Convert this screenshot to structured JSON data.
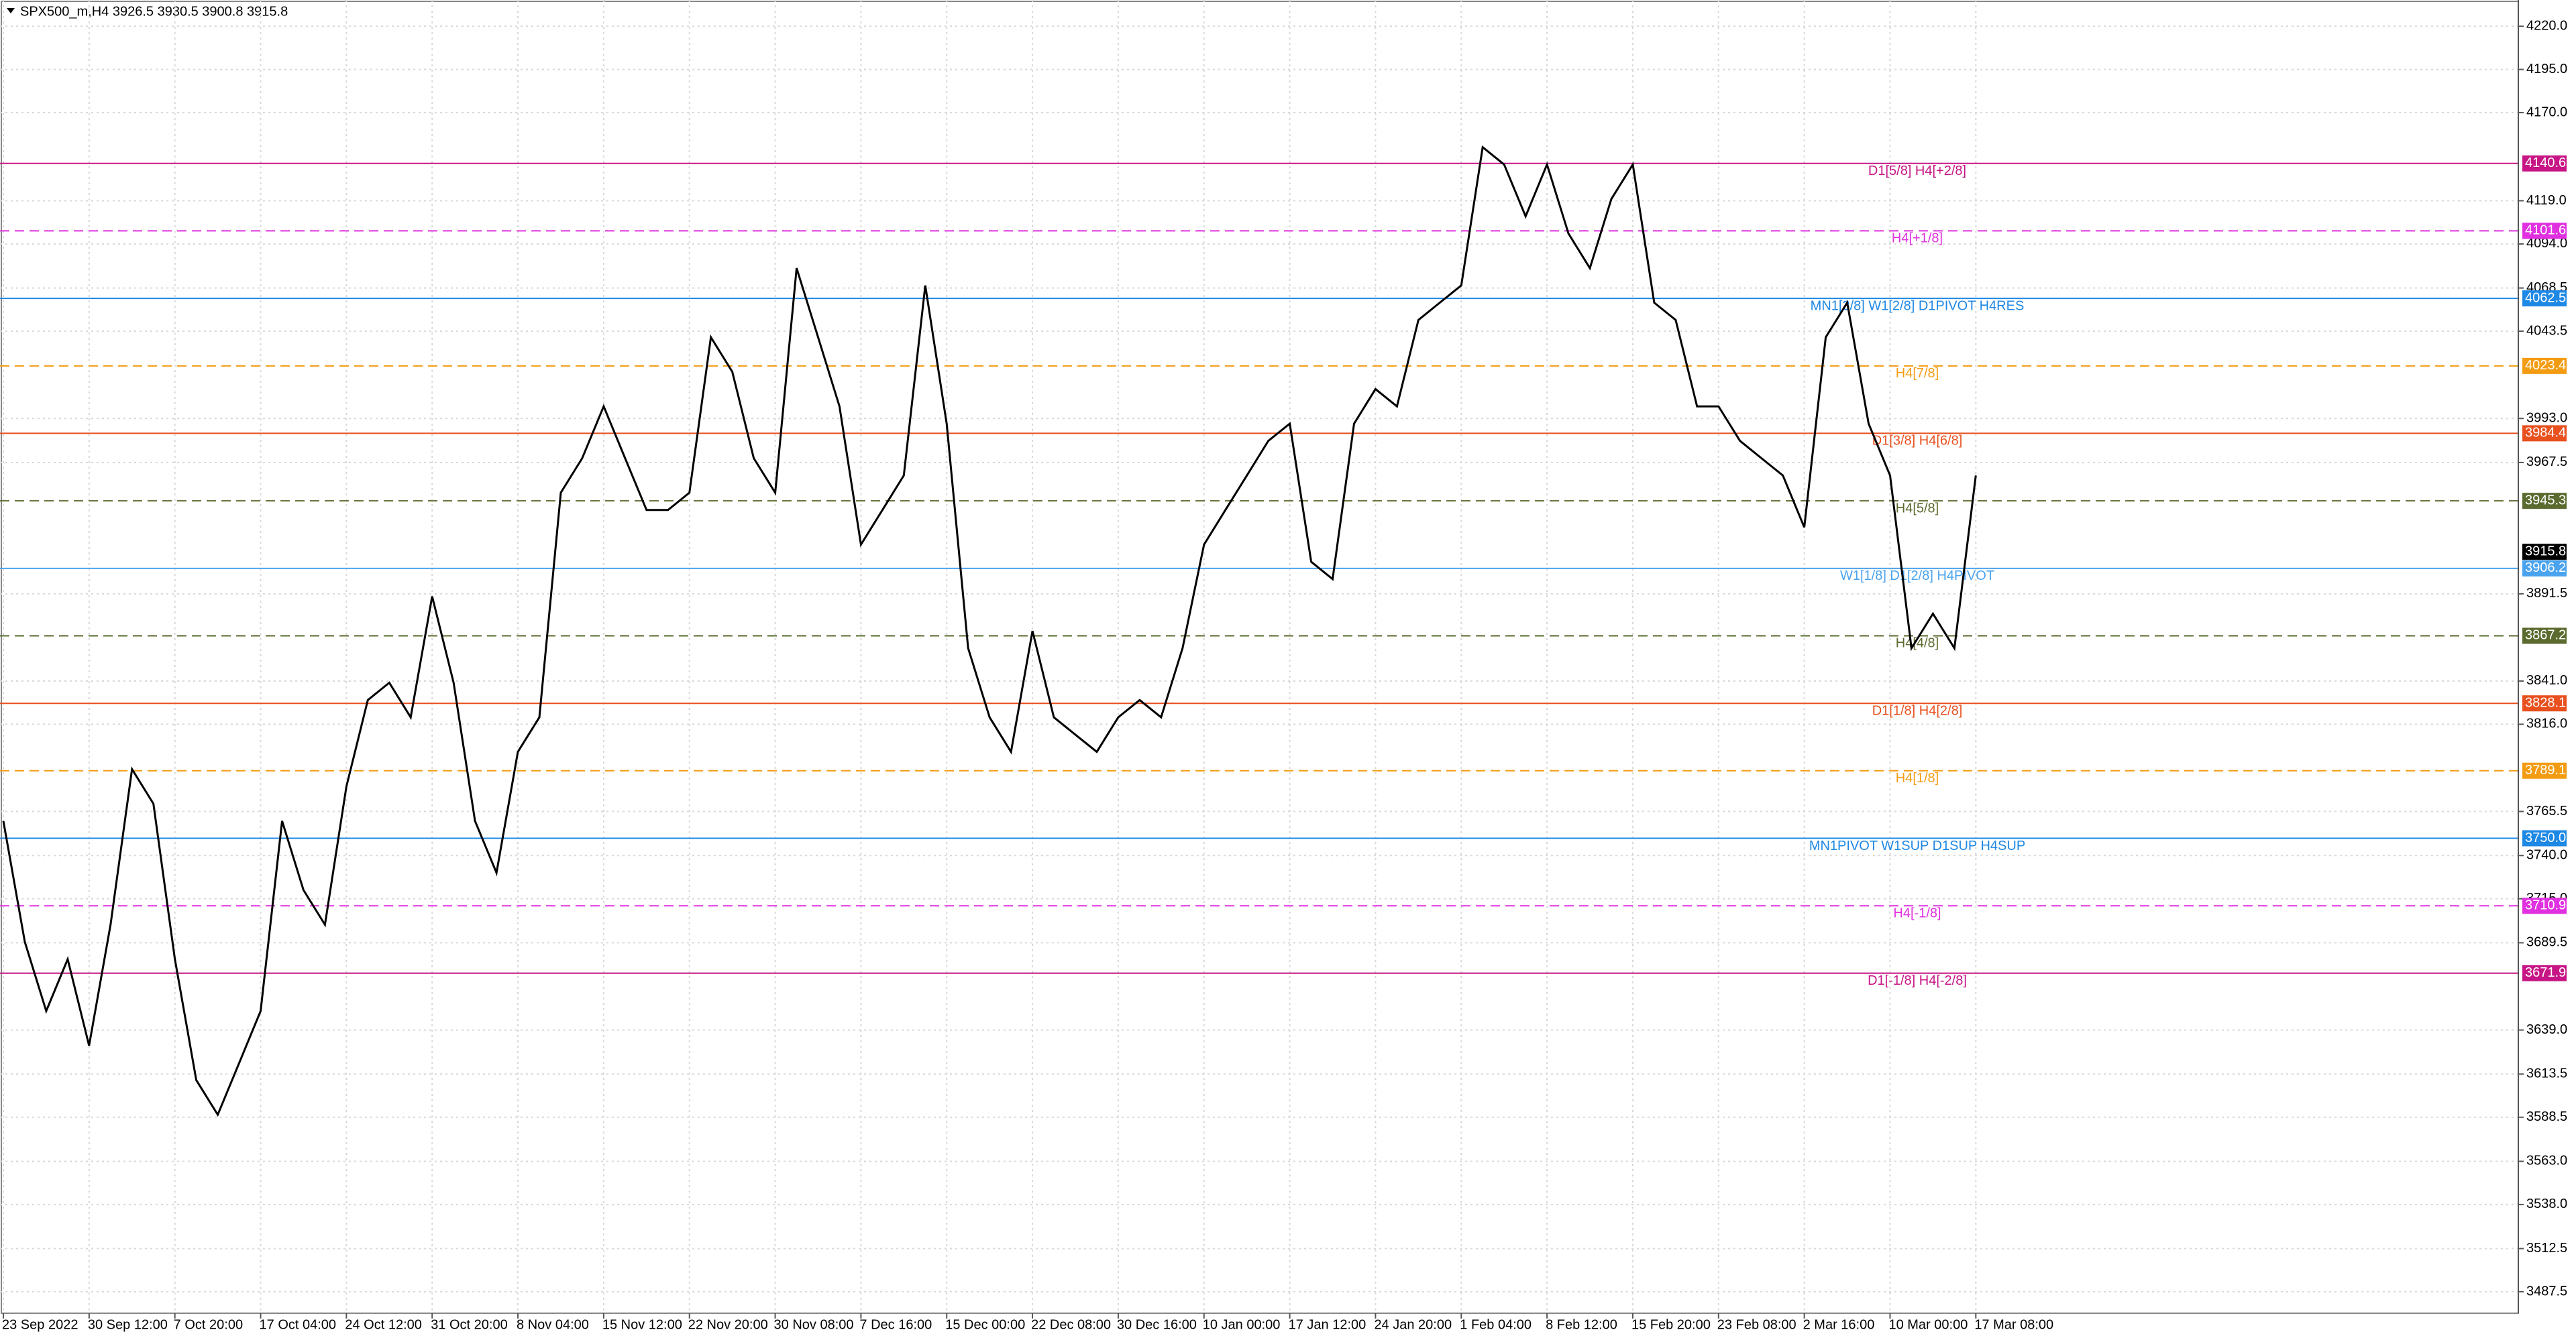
{
  "chart_data": {
    "type": "line",
    "title": "SPX500_m,H4  3926.5 3930.5 3900.8 3915.8",
    "categories": [
      "23 Sep 2022",
      null,
      null,
      null,
      "30 Sep 12:00",
      null,
      null,
      null,
      "7 Oct 20:00",
      null,
      null,
      null,
      "17 Oct 04:00",
      null,
      null,
      null,
      "24 Oct 12:00",
      null,
      null,
      null,
      "31 Oct 20:00",
      null,
      null,
      null,
      "8 Nov 04:00",
      null,
      null,
      null,
      "15 Nov 12:00",
      null,
      null,
      null,
      "22 Nov 20:00",
      null,
      null,
      null,
      "30 Nov 08:00",
      null,
      null,
      null,
      "7 Dec 16:00",
      null,
      null,
      null,
      "15 Dec 00:00",
      null,
      null,
      null,
      "22 Dec 08:00",
      null,
      null,
      null,
      "30 Dec 16:00",
      null,
      null,
      null,
      "10 Jan 00:00",
      null,
      null,
      null,
      "17 Jan 12:00",
      null,
      null,
      null,
      "24 Jan 20:00",
      null,
      null,
      null,
      "1 Feb 04:00",
      null,
      null,
      null,
      "8 Feb 12:00",
      null,
      null,
      null,
      "15 Feb 20:00",
      null,
      null,
      null,
      "23 Feb 08:00",
      null,
      null,
      null,
      "2 Mar 16:00",
      null,
      null,
      null,
      "10 Mar 00:00",
      null,
      null,
      null,
      "17 Mar 08:00"
    ],
    "series": [
      {
        "color": "#000000",
        "values": [
          3760,
          3690,
          3650,
          3680,
          3630,
          3700,
          3790,
          3770,
          3680,
          3610,
          3590,
          3620,
          3650,
          3760,
          3720,
          3700,
          3780,
          3830,
          3840,
          3820,
          3890,
          3840,
          3760,
          3730,
          3800,
          3820,
          3950,
          3970,
          4000,
          3970,
          3940,
          3940,
          3950,
          4040,
          4020,
          3970,
          3950,
          4080,
          4040,
          4000,
          3920,
          3940,
          3960,
          4070,
          3990,
          3860,
          3820,
          3800,
          3870,
          3820,
          3810,
          3800,
          3820,
          3830,
          3820,
          3860,
          3920,
          3940,
          3960,
          3980,
          3990,
          3910,
          3900,
          3990,
          4010,
          4000,
          4050,
          4060,
          4070,
          4150,
          4140,
          4110,
          4140,
          4100,
          4080,
          4120,
          4140,
          4060,
          4050,
          4000,
          4000,
          3980,
          3970,
          3960,
          3930,
          4040,
          4060,
          3990,
          3960,
          3860,
          3880,
          3860,
          3960
        ]
      }
    ],
    "ylim": [
      3475.1,
      4235.2
    ],
    "yticks": [
      {
        "value": 4220,
        "label": "4220.0"
      },
      {
        "value": 4195,
        "label": "4195.0"
      },
      {
        "value": 4170,
        "label": "4170.0"
      },
      {
        "value": 4119,
        "label": "4119.0"
      },
      {
        "value": 4094,
        "label": "4094.0"
      },
      4068.5,
      4043.5,
      {
        "value": 3993,
        "label": "3993.0"
      },
      3967.5,
      3891.5,
      {
        "value": 3841,
        "label": "3841.0"
      },
      {
        "value": 3816,
        "label": "3816.0"
      },
      3765.5,
      {
        "value": 3740,
        "label": "3740.0"
      },
      {
        "value": 3715,
        "label": "3715.0"
      },
      3689.5,
      {
        "value": 3639,
        "label": "3639.0"
      },
      3613.5,
      3588.5,
      {
        "value": 3563,
        "label": "3563.0"
      },
      {
        "value": 3538,
        "label": "3538.0"
      },
      3512.5,
      3487.5
    ],
    "grid": true,
    "current_price": {
      "value": 3915.8,
      "label": "3915.8"
    },
    "levels": [
      {
        "name": "D1[5/8] H4[+2/8]",
        "value": 4140.6,
        "value_label": "4140.6",
        "color": "#c71585",
        "dashed": false
      },
      {
        "name": "H4[+1/8]",
        "value": 4101.6,
        "value_label": "4101.6",
        "color": "#e030e0",
        "dashed": true
      },
      {
        "name": "MN1[3/8] W1[2/8] D1PIVOT H4RES",
        "value": 4062.5,
        "value_label": "4062.5",
        "color": "#1e88e5",
        "dashed": false
      },
      {
        "name": "H4[7/8]",
        "value": 4023.4,
        "value_label": "4023.4",
        "color": "#f39c12",
        "dashed": true
      },
      {
        "name": "D1[3/8] H4[6/8]",
        "value": 3984.4,
        "value_label": "3984.4",
        "color": "#e8501e",
        "dashed": false
      },
      {
        "name": "H4[5/8]",
        "value": 3945.3,
        "value_label": "3945.3",
        "color": "#5b6b2f",
        "dashed": true
      },
      {
        "name": "W1[1/8] D1[2/8] H4PIVOT",
        "value": 3906.2,
        "value_label": "3906.2",
        "color": "#4aa3ef",
        "dashed": false
      },
      {
        "name": "H4[4/8]",
        "value": 3867.2,
        "value_label": "3867.2",
        "color": "#5b6b2f",
        "dashed": true
      },
      {
        "name": "D1[1/8] H4[2/8]",
        "value": 3828.1,
        "value_label": "3828.1",
        "color": "#e8501e",
        "dashed": false
      },
      {
        "name": "H4[1/8]",
        "value": 3789.1,
        "value_label": "3789.1",
        "color": "#f39c12",
        "dashed": true
      },
      {
        "name": "MN1PIVOT W1SUP D1SUP H4SUP",
        "value": 3750,
        "value_label": "3750.0",
        "color": "#1e88e5",
        "dashed": false
      },
      {
        "name": "H4[-1/8]",
        "value": 3710.9,
        "value_label": "3710.9",
        "color": "#e030e0",
        "dashed": true
      },
      {
        "name": "D1[-1/8] H4[-2/8]",
        "value": 3671.9,
        "value_label": "3671.9",
        "color": "#c71585",
        "dashed": false
      }
    ]
  }
}
